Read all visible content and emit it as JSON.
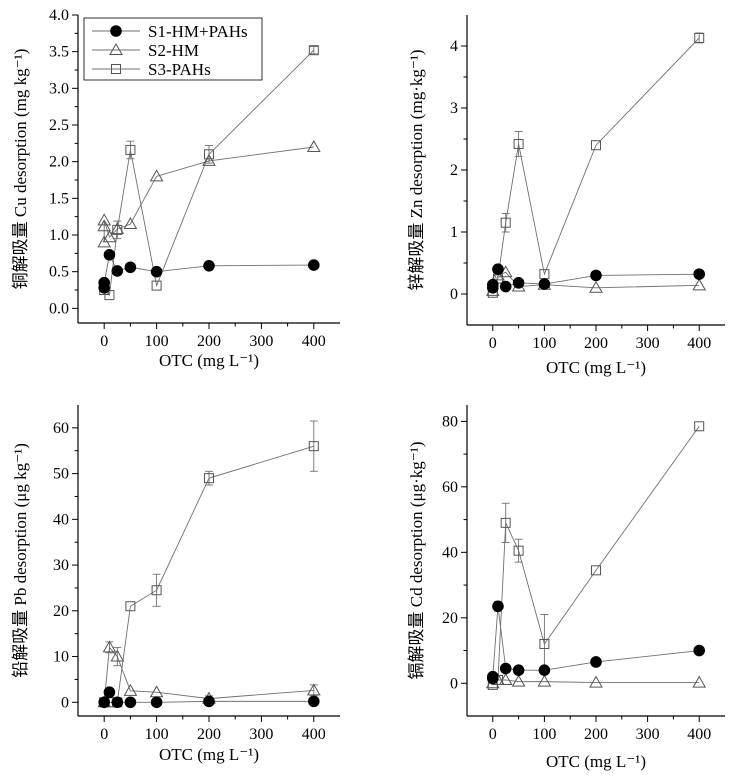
{
  "chart_data": [
    {
      "type": "scatter",
      "ylabel": "铜解吸量 Cu desorption (mg kg⁻¹)",
      "xlabel": "OTC (mg L⁻¹)",
      "xlim": [
        -50,
        450
      ],
      "ylim": [
        -0.2,
        4.0
      ],
      "xticks": [
        "0",
        "100",
        "200",
        "300",
        "400"
      ],
      "yticks": [
        "0.0",
        "0.5",
        "1.0",
        "1.5",
        "2.0",
        "2.5",
        "3.0",
        "3.5",
        "4.0"
      ],
      "legend": {
        "placement": "top-left",
        "entries": [
          "S1-HM+PAHs",
          "S2-HM",
          "S3-PAHs"
        ]
      },
      "series": [
        {
          "x": [
            0,
            0,
            10,
            25,
            50,
            100,
            200,
            400
          ],
          "y": [
            0.28,
            0.35,
            0.73,
            0.51,
            0.56,
            0.5,
            0.58,
            0.59
          ]
        },
        {
          "x": [
            0,
            0,
            0,
            10,
            25,
            50,
            100,
            200,
            400
          ],
          "y": [
            0.9,
            1.12,
            1.2,
            0.97,
            1.08,
            1.15,
            1.8,
            2.01,
            2.2
          ]
        },
        {
          "x": [
            0,
            10,
            25,
            50,
            100,
            200,
            400
          ],
          "y": [
            0.25,
            0.18,
            1.07,
            2.16,
            0.31,
            2.1,
            3.52
          ],
          "err": [
            0,
            0,
            0.12,
            0.12,
            0,
            0.12,
            0.05
          ]
        }
      ]
    },
    {
      "type": "scatter",
      "ylabel": "锌解吸量 Zn desorption (mg·kg⁻¹)",
      "xlabel": "OTC (mg L⁻¹)",
      "xlim": [
        -50,
        450
      ],
      "ylim": [
        -0.5,
        4.5
      ],
      "xticks": [
        "0",
        "100",
        "200",
        "300",
        "400"
      ],
      "yticks": [
        "0",
        "1",
        "2",
        "3",
        "4"
      ],
      "series": [
        {
          "x": [
            0,
            0,
            10,
            25,
            50,
            100,
            200,
            400
          ],
          "y": [
            0.1,
            0.15,
            0.4,
            0.12,
            0.18,
            0.16,
            0.3,
            0.32
          ]
        },
        {
          "x": [
            0,
            10,
            25,
            50,
            100,
            200,
            400
          ],
          "y": [
            0.05,
            0.3,
            0.35,
            0.12,
            0.15,
            0.1,
            0.14
          ]
        },
        {
          "x": [
            0,
            10,
            25,
            50,
            100,
            200,
            400
          ],
          "y": [
            0.02,
            0.25,
            1.15,
            2.42,
            0.32,
            2.4,
            4.13
          ],
          "err": [
            0,
            0,
            0.15,
            0.2,
            0,
            0,
            0.08
          ]
        }
      ]
    },
    {
      "type": "scatter",
      "ylabel": "铅解吸量 Pb desorption (μg kg⁻¹)",
      "xlabel": "OTC (mg L⁻¹)",
      "xlim": [
        -50,
        450
      ],
      "ylim": [
        -3,
        65
      ],
      "xticks": [
        "0",
        "100",
        "200",
        "300",
        "400"
      ],
      "yticks": [
        "0",
        "10",
        "20",
        "30",
        "40",
        "50",
        "60"
      ],
      "series": [
        {
          "x": [
            0,
            10,
            25,
            50,
            100,
            200,
            400
          ],
          "y": [
            0,
            2.2,
            0,
            0,
            0,
            0.2,
            0.2
          ]
        },
        {
          "x": [
            0,
            10,
            25,
            50,
            100,
            200,
            400
          ],
          "y": [
            0,
            12,
            10,
            2.5,
            2.2,
            0.8,
            2.6
          ],
          "err": [
            0,
            1.2,
            2,
            0,
            0,
            0.6,
            1.2
          ]
        },
        {
          "x": [
            0,
            10,
            25,
            50,
            100,
            200,
            400
          ],
          "y": [
            0,
            0,
            0,
            21,
            24.5,
            49,
            56
          ],
          "err": [
            0,
            0,
            0,
            0,
            3.5,
            1.5,
            5.5
          ]
        }
      ]
    },
    {
      "type": "scatter",
      "ylabel": "镉解吸量 Cd desorption (μg·kg⁻¹)",
      "xlabel": "OTC (mg L⁻¹)",
      "xlim": [
        -50,
        450
      ],
      "ylim": [
        -10,
        85
      ],
      "xticks": [
        "0",
        "100",
        "200",
        "300",
        "400"
      ],
      "yticks": [
        "0",
        "20",
        "40",
        "60",
        "80"
      ],
      "series": [
        {
          "x": [
            0,
            0,
            10,
            25,
            50,
            100,
            200,
            400
          ],
          "y": [
            1.5,
            2,
            23.5,
            4.5,
            4,
            4,
            6.5,
            10
          ],
          "err": [
            0,
            0,
            1.5,
            0,
            0,
            0,
            0,
            0
          ]
        },
        {
          "x": [
            0,
            10,
            25,
            50,
            100,
            200,
            400
          ],
          "y": [
            0,
            1,
            1,
            0.5,
            0.5,
            0.2,
            0.2
          ]
        },
        {
          "x": [
            0,
            10,
            25,
            50,
            100,
            200,
            400
          ],
          "y": [
            -0.5,
            1,
            49,
            40.5,
            12,
            34.5,
            78.5
          ],
          "err": [
            0,
            0,
            6,
            3.5,
            9,
            0,
            0
          ]
        }
      ]
    }
  ]
}
